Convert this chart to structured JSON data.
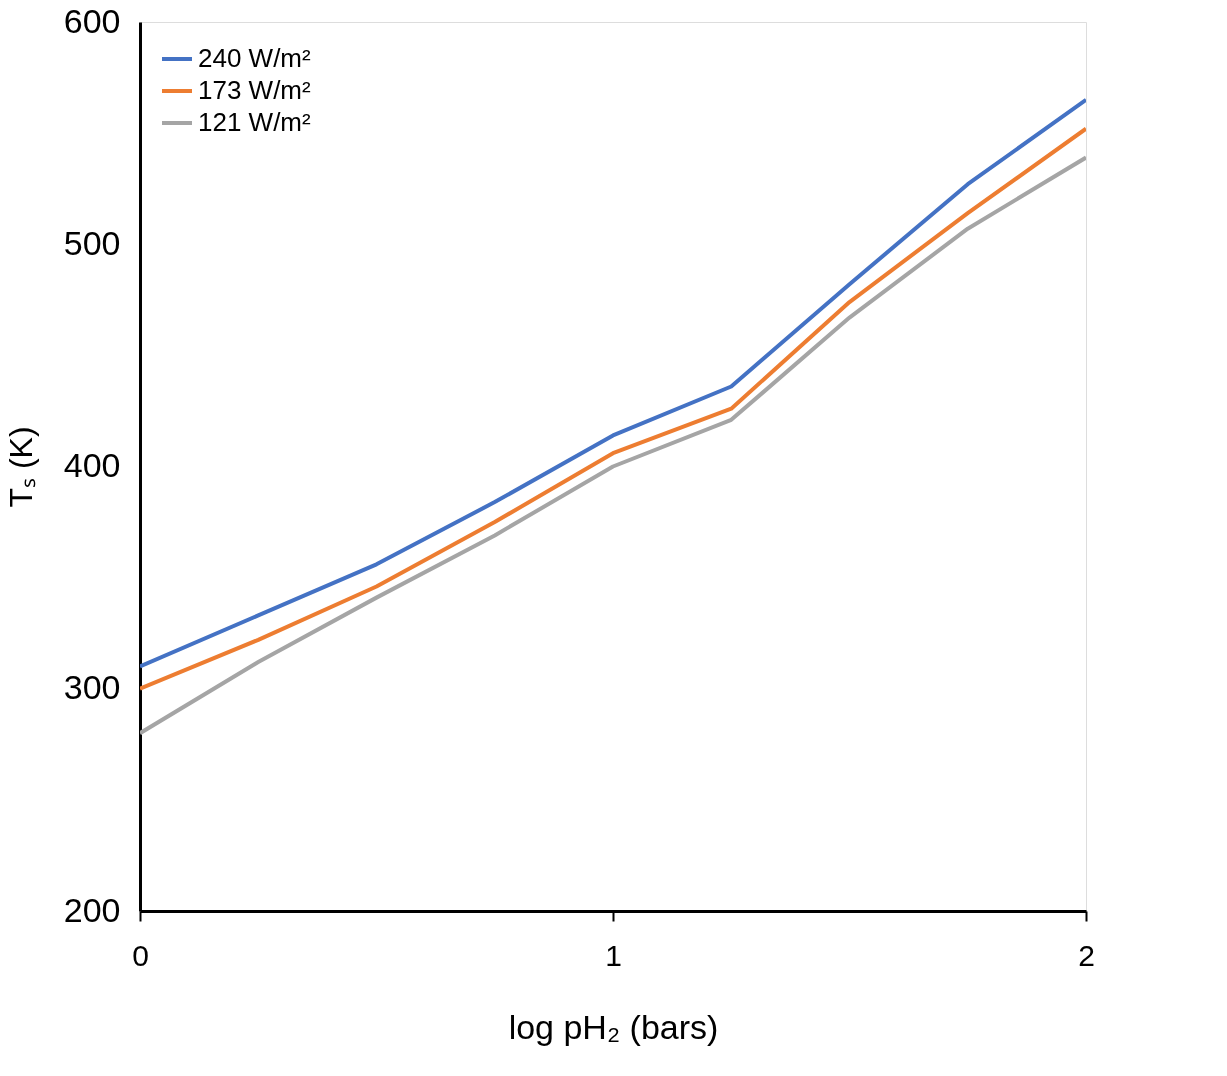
{
  "chart_data": {
    "type": "line",
    "xlabel": "log pH₂ (bars)",
    "ylabel": "Tₛ (K)",
    "x": [
      0,
      0.25,
      0.5,
      0.75,
      1,
      1.25,
      1.5,
      1.75,
      2
    ],
    "series": [
      {
        "name": "240 W/m²",
        "color": "#4472c4",
        "values": [
          310,
          333,
          356,
          384,
          414,
          436,
          482,
          527,
          565
        ]
      },
      {
        "name": "173 W/m²",
        "color": "#ed7d31",
        "values": [
          300,
          322,
          346,
          375,
          406,
          426,
          474,
          514,
          552
        ]
      },
      {
        "name": "121 W/m²",
        "color": "#a5a5a5",
        "values": [
          280,
          312,
          341,
          369,
          400,
          421,
          467,
          507,
          539
        ]
      }
    ],
    "xlim": [
      0,
      2
    ],
    "xticks": [
      0,
      1,
      2
    ],
    "ylim": [
      200,
      600
    ],
    "yticks": [
      200,
      300,
      400,
      500,
      600
    ],
    "grid": false,
    "legend": "top left",
    "line_style": "solid",
    "marker": "none"
  }
}
